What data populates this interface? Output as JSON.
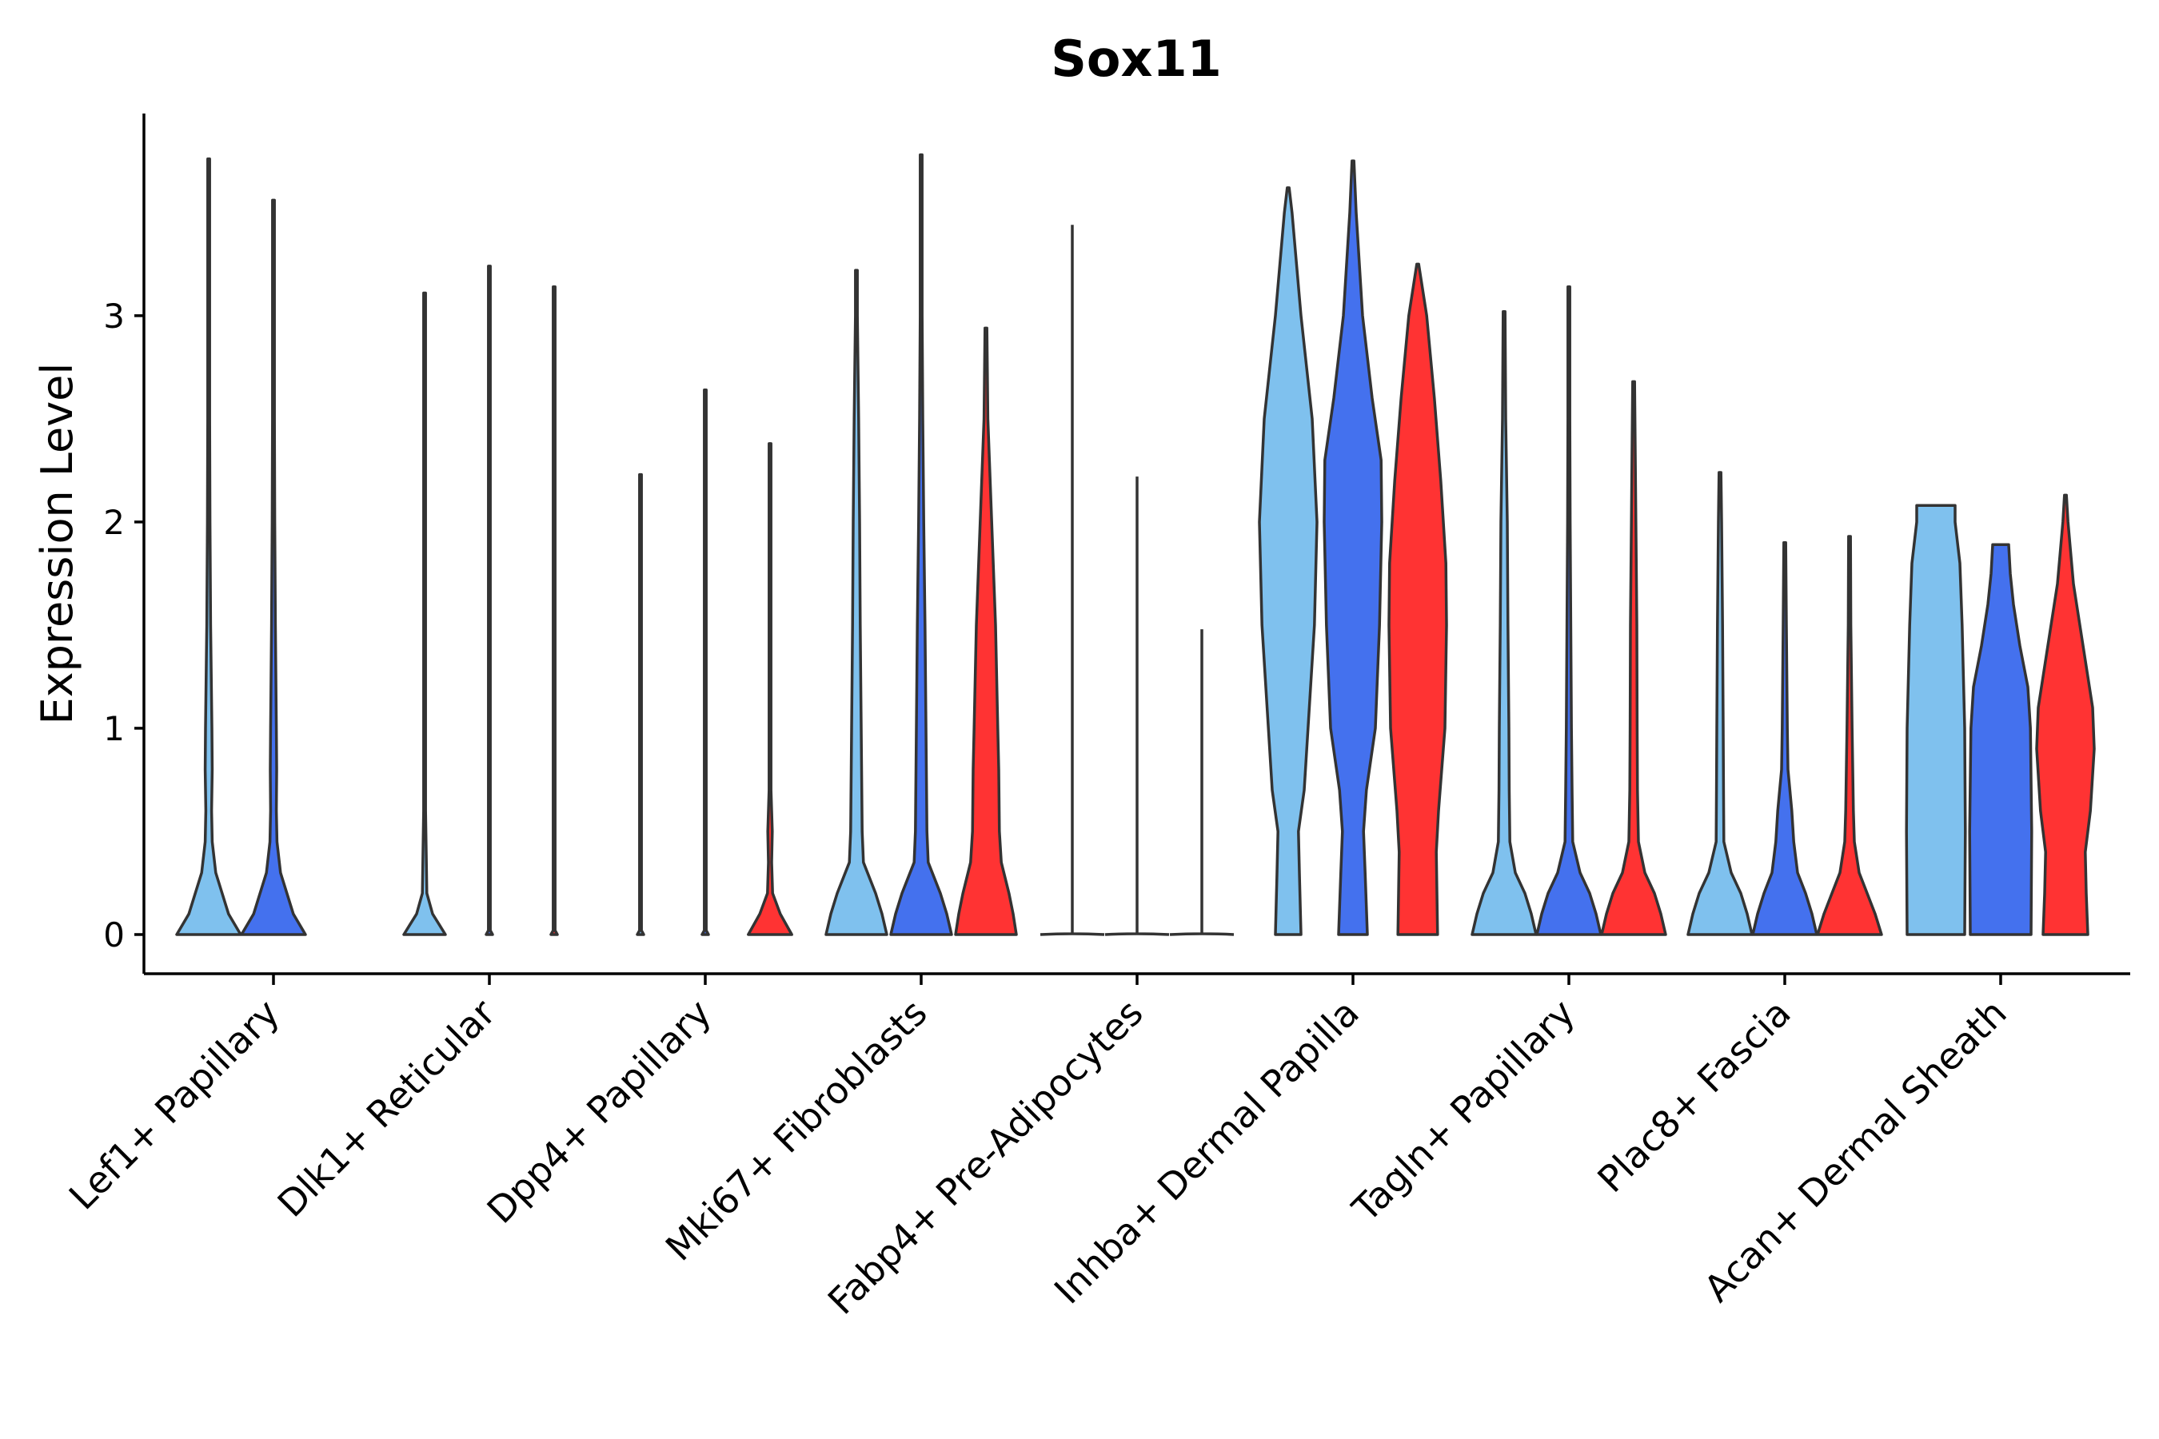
{
  "chart_data": {
    "type": "violin",
    "title": "Sox11",
    "xlabel": "",
    "ylabel": "Expression Level",
    "ylim": [
      -0.19,
      3.98
    ],
    "yticks": [
      0,
      1,
      2,
      3
    ],
    "grid": false,
    "legend": "none",
    "groups": [
      "Lef1+ Papillary",
      "Dlk1+ Reticular",
      "Dpp4+ Papillary",
      "Mki67+ Fibroblasts",
      "Fabp4+ Pre-Adipocytes",
      "Inhba+ Dermal Papilla",
      "Tagln+ Papillary",
      "Plac8+ Fascia",
      "Acan+ Dermal Sheath"
    ],
    "colors": [
      "#7FC1EE",
      "#4471EE",
      "#FF3333"
    ],
    "violins": [
      {
        "group": 0,
        "sub": 0,
        "max": 3.76,
        "profile": [
          [
            0,
            1.0
          ],
          [
            0.1,
            0.62
          ],
          [
            0.2,
            0.42
          ],
          [
            0.3,
            0.22
          ],
          [
            0.45,
            0.11
          ],
          [
            0.6,
            0.09
          ],
          [
            0.8,
            0.11
          ],
          [
            1.0,
            0.1
          ],
          [
            1.5,
            0.06
          ],
          [
            2.0,
            0.04
          ],
          [
            2.5,
            0.03
          ],
          [
            3.0,
            0.02
          ],
          [
            3.76,
            0.0
          ]
        ]
      },
      {
        "group": 0,
        "sub": 1,
        "max": 3.56,
        "profile": [
          [
            0,
            1.0
          ],
          [
            0.1,
            0.62
          ],
          [
            0.2,
            0.42
          ],
          [
            0.3,
            0.22
          ],
          [
            0.45,
            0.11
          ],
          [
            0.6,
            0.09
          ],
          [
            0.8,
            0.1
          ],
          [
            1.0,
            0.09
          ],
          [
            1.5,
            0.06
          ],
          [
            2.0,
            0.04
          ],
          [
            2.5,
            0.03
          ],
          [
            3.0,
            0.02
          ],
          [
            3.56,
            0.0
          ]
        ]
      },
      {
        "group": 1,
        "sub": 0,
        "max": 3.11,
        "profile": [
          [
            0,
            0.65
          ],
          [
            0.05,
            0.45
          ],
          [
            0.1,
            0.25
          ],
          [
            0.2,
            0.07
          ],
          [
            0.4,
            0.05
          ],
          [
            0.6,
            0.03
          ],
          [
            1.0,
            0.02
          ],
          [
            2.0,
            0.015
          ],
          [
            3.11,
            0.0
          ]
        ]
      },
      {
        "group": 1,
        "sub": 1,
        "max": 3.24,
        "profile": [
          [
            0,
            0.1
          ],
          [
            0.02,
            0.012
          ],
          [
            1.0,
            0.01
          ],
          [
            2.0,
            0.01
          ],
          [
            3.24,
            0.0
          ]
        ]
      },
      {
        "group": 1,
        "sub": 2,
        "max": 3.14,
        "profile": [
          [
            0,
            0.1
          ],
          [
            0.02,
            0.012
          ],
          [
            1.0,
            0.01
          ],
          [
            2.0,
            0.01
          ],
          [
            3.14,
            0.0
          ]
        ]
      },
      {
        "group": 2,
        "sub": 0,
        "max": 2.23,
        "profile": [
          [
            0,
            0.1
          ],
          [
            0.02,
            0.012
          ],
          [
            1.0,
            0.01
          ],
          [
            2.23,
            0.0
          ]
        ]
      },
      {
        "group": 2,
        "sub": 1,
        "max": 2.64,
        "profile": [
          [
            0,
            0.1
          ],
          [
            0.02,
            0.012
          ],
          [
            1.0,
            0.01
          ],
          [
            2.64,
            0.0
          ]
        ]
      },
      {
        "group": 2,
        "sub": 2,
        "max": 2.38,
        "profile": [
          [
            0,
            0.68
          ],
          [
            0.05,
            0.5
          ],
          [
            0.1,
            0.32
          ],
          [
            0.2,
            0.08
          ],
          [
            0.35,
            0.05
          ],
          [
            0.5,
            0.07
          ],
          [
            0.7,
            0.03
          ],
          [
            1.2,
            0.02
          ],
          [
            2.38,
            0.0
          ]
        ]
      },
      {
        "group": 3,
        "sub": 0,
        "max": 3.22,
        "profile": [
          [
            0,
            0.95
          ],
          [
            0.1,
            0.8
          ],
          [
            0.2,
            0.6
          ],
          [
            0.35,
            0.22
          ],
          [
            0.5,
            0.18
          ],
          [
            1.0,
            0.15
          ],
          [
            1.5,
            0.12
          ],
          [
            2.0,
            0.1
          ],
          [
            2.5,
            0.07
          ],
          [
            3.0,
            0.03
          ],
          [
            3.22,
            0.0
          ]
        ]
      },
      {
        "group": 3,
        "sub": 1,
        "max": 3.78,
        "profile": [
          [
            0,
            0.95
          ],
          [
            0.1,
            0.8
          ],
          [
            0.2,
            0.6
          ],
          [
            0.35,
            0.22
          ],
          [
            0.5,
            0.18
          ],
          [
            1.0,
            0.15
          ],
          [
            1.5,
            0.12
          ],
          [
            2.0,
            0.08
          ],
          [
            2.5,
            0.05
          ],
          [
            3.0,
            0.03
          ],
          [
            3.78,
            0.0
          ]
        ]
      },
      {
        "group": 3,
        "sub": 2,
        "max": 2.94,
        "profile": [
          [
            0,
            0.95
          ],
          [
            0.1,
            0.85
          ],
          [
            0.2,
            0.72
          ],
          [
            0.35,
            0.48
          ],
          [
            0.5,
            0.42
          ],
          [
            0.8,
            0.4
          ],
          [
            1.0,
            0.37
          ],
          [
            1.5,
            0.3
          ],
          [
            2.0,
            0.18
          ],
          [
            2.5,
            0.06
          ],
          [
            2.94,
            0.0
          ]
        ]
      },
      {
        "group": 5,
        "sub": 0,
        "max": 3.62,
        "profile": [
          [
            0,
            0.4
          ],
          [
            0.3,
            0.35
          ],
          [
            0.5,
            0.32
          ],
          [
            0.7,
            0.5
          ],
          [
            1.0,
            0.62
          ],
          [
            1.5,
            0.82
          ],
          [
            2.0,
            0.9
          ],
          [
            2.5,
            0.75
          ],
          [
            3.0,
            0.4
          ],
          [
            3.5,
            0.12
          ],
          [
            3.62,
            0.0
          ]
        ]
      },
      {
        "group": 5,
        "sub": 1,
        "max": 3.75,
        "profile": [
          [
            0,
            0.45
          ],
          [
            0.3,
            0.38
          ],
          [
            0.5,
            0.33
          ],
          [
            0.7,
            0.42
          ],
          [
            1.0,
            0.7
          ],
          [
            1.5,
            0.83
          ],
          [
            2.0,
            0.9
          ],
          [
            2.3,
            0.88
          ],
          [
            2.6,
            0.6
          ],
          [
            3.0,
            0.3
          ],
          [
            3.5,
            0.1
          ],
          [
            3.75,
            0.0
          ]
        ]
      },
      {
        "group": 5,
        "sub": 2,
        "max": 3.25,
        "profile": [
          [
            0,
            0.62
          ],
          [
            0.2,
            0.6
          ],
          [
            0.4,
            0.58
          ],
          [
            0.6,
            0.65
          ],
          [
            1.0,
            0.85
          ],
          [
            1.5,
            0.9
          ],
          [
            1.8,
            0.88
          ],
          [
            2.2,
            0.72
          ],
          [
            2.6,
            0.52
          ],
          [
            3.0,
            0.28
          ],
          [
            3.25,
            0.0
          ]
        ]
      },
      {
        "group": 6,
        "sub": 0,
        "max": 3.02,
        "profile": [
          [
            0,
            1.0
          ],
          [
            0.1,
            0.85
          ],
          [
            0.2,
            0.65
          ],
          [
            0.3,
            0.35
          ],
          [
            0.45,
            0.18
          ],
          [
            0.7,
            0.16
          ],
          [
            1.0,
            0.15
          ],
          [
            1.5,
            0.12
          ],
          [
            2.0,
            0.1
          ],
          [
            2.5,
            0.05
          ],
          [
            3.02,
            0.0
          ]
        ]
      },
      {
        "group": 6,
        "sub": 1,
        "max": 3.14,
        "profile": [
          [
            0,
            1.0
          ],
          [
            0.1,
            0.85
          ],
          [
            0.2,
            0.65
          ],
          [
            0.3,
            0.35
          ],
          [
            0.45,
            0.12
          ],
          [
            0.7,
            0.1
          ],
          [
            1.0,
            0.08
          ],
          [
            1.5,
            0.06
          ],
          [
            2.0,
            0.04
          ],
          [
            2.5,
            0.02
          ],
          [
            3.14,
            0.0
          ]
        ]
      },
      {
        "group": 6,
        "sub": 2,
        "max": 2.68,
        "profile": [
          [
            0,
            1.0
          ],
          [
            0.1,
            0.85
          ],
          [
            0.2,
            0.65
          ],
          [
            0.3,
            0.35
          ],
          [
            0.45,
            0.15
          ],
          [
            0.7,
            0.12
          ],
          [
            1.0,
            0.11
          ],
          [
            1.5,
            0.1
          ],
          [
            2.0,
            0.07
          ],
          [
            2.68,
            0.0
          ]
        ]
      },
      {
        "group": 7,
        "sub": 0,
        "max": 2.24,
        "profile": [
          [
            0,
            1.0
          ],
          [
            0.1,
            0.85
          ],
          [
            0.2,
            0.65
          ],
          [
            0.3,
            0.35
          ],
          [
            0.45,
            0.12
          ],
          [
            0.7,
            0.11
          ],
          [
            1.0,
            0.1
          ],
          [
            1.5,
            0.08
          ],
          [
            2.0,
            0.05
          ],
          [
            2.24,
            0.0
          ]
        ]
      },
      {
        "group": 7,
        "sub": 1,
        "max": 1.9,
        "profile": [
          [
            0,
            1.0
          ],
          [
            0.1,
            0.85
          ],
          [
            0.2,
            0.65
          ],
          [
            0.3,
            0.4
          ],
          [
            0.45,
            0.28
          ],
          [
            0.6,
            0.22
          ],
          [
            0.8,
            0.1
          ],
          [
            1.0,
            0.08
          ],
          [
            1.5,
            0.05
          ],
          [
            1.9,
            0.0
          ]
        ]
      },
      {
        "group": 7,
        "sub": 2,
        "max": 1.93,
        "profile": [
          [
            0,
            1.0
          ],
          [
            0.1,
            0.8
          ],
          [
            0.2,
            0.55
          ],
          [
            0.3,
            0.3
          ],
          [
            0.45,
            0.15
          ],
          [
            0.6,
            0.12
          ],
          [
            0.8,
            0.1
          ],
          [
            1.0,
            0.08
          ],
          [
            1.5,
            0.04
          ],
          [
            1.93,
            0.0
          ]
        ]
      },
      {
        "group": 8,
        "sub": 0,
        "max": 2.08,
        "profile": [
          [
            0,
            0.9
          ],
          [
            0.5,
            0.92
          ],
          [
            1.0,
            0.9
          ],
          [
            1.5,
            0.82
          ],
          [
            1.8,
            0.75
          ],
          [
            2.0,
            0.6
          ],
          [
            2.08,
            0.6
          ]
        ]
      },
      {
        "group": 8,
        "sub": 1,
        "max": 1.89,
        "profile": [
          [
            0,
            0.95
          ],
          [
            0.5,
            0.97
          ],
          [
            1.0,
            0.93
          ],
          [
            1.2,
            0.85
          ],
          [
            1.4,
            0.6
          ],
          [
            1.6,
            0.4
          ],
          [
            1.75,
            0.3
          ],
          [
            1.89,
            0.25
          ]
        ]
      },
      {
        "group": 8,
        "sub": 2,
        "max": 2.13,
        "profile": [
          [
            0,
            0.7
          ],
          [
            0.2,
            0.65
          ],
          [
            0.4,
            0.62
          ],
          [
            0.6,
            0.78
          ],
          [
            0.9,
            0.9
          ],
          [
            1.1,
            0.85
          ],
          [
            1.4,
            0.55
          ],
          [
            1.7,
            0.25
          ],
          [
            2.0,
            0.08
          ],
          [
            2.13,
            0.0
          ]
        ]
      }
    ],
    "flat_violins": [
      {
        "group": 4,
        "sub": 0,
        "max": 3.44
      },
      {
        "group": 4,
        "sub": 1,
        "max": 2.22
      },
      {
        "group": 4,
        "sub": 2,
        "max": 1.48
      }
    ]
  }
}
